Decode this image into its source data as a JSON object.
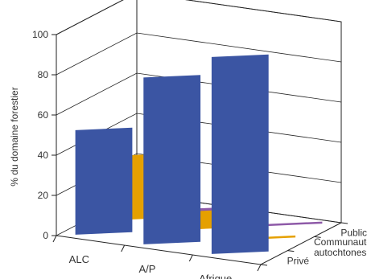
{
  "chart_data": {
    "type": "bar",
    "subtype": "3d-grouped-bar",
    "title": "",
    "ylabel": "% du domaine forestier",
    "xlabel": "",
    "ylim": [
      0,
      100
    ],
    "yticks": [
      0,
      20,
      40,
      60,
      80,
      100
    ],
    "grid": true,
    "categories": [
      "ALC",
      "A/P",
      "Afrique"
    ],
    "depth_labels": [
      [
        "Public"
      ],
      [
        "Communautés",
        "autochtones"
      ],
      [
        "Privé"
      ]
    ],
    "series": [
      {
        "name": "Privé",
        "color": "#8e5aa8",
        "values": [
          12,
          4,
          1
        ]
      },
      {
        "name": "Communautés autochtones",
        "color": "#e5a000",
        "values": [
          32,
          9,
          1
        ]
      },
      {
        "name": "Public",
        "color": "#3b55a3",
        "values": [
          52,
          83,
          98
        ]
      }
    ]
  }
}
